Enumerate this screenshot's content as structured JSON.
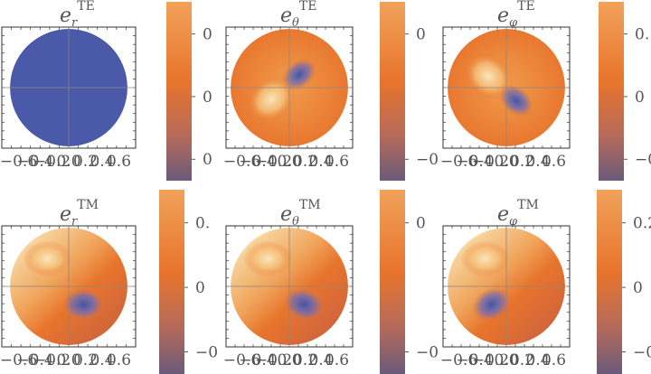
{
  "figure": {
    "panels": [
      {
        "id": "er-te",
        "title_main": "e",
        "title_sub": "r",
        "title_sup": "TE",
        "pattern": "uniform",
        "colorbar_labels": [
          "0",
          "0",
          "0"
        ]
      },
      {
        "id": "etheta-te",
        "title_main": "e",
        "title_sub": "θ",
        "title_sup": "TE",
        "pattern": "lobes-a",
        "colorbar_labels": [
          "0",
          "−0"
        ]
      },
      {
        "id": "ephi-te",
        "title_main": "e",
        "title_sub": "φ",
        "title_sup": "TE",
        "pattern": "lobes-b",
        "colorbar_labels": [
          "0.",
          "0",
          "−0"
        ]
      },
      {
        "id": "er-tm",
        "title_main": "e",
        "title_sub": "r",
        "title_sup": "TM",
        "pattern": "swirl-a",
        "colorbar_labels": [
          "0.",
          "0",
          "−0"
        ]
      },
      {
        "id": "etheta-tm",
        "title_main": "e",
        "title_sub": "θ",
        "title_sup": "TM",
        "pattern": "swirl-b",
        "colorbar_labels": [
          "0",
          "−0"
        ]
      },
      {
        "id": "ephi-tm",
        "title_main": "e",
        "title_sub": "φ",
        "title_sup": "TM",
        "pattern": "swirl-c",
        "colorbar_labels": [
          "0.2",
          "0",
          "−0"
        ]
      }
    ],
    "x_tick_labels": [
      "−0.6",
      "−0.4",
      "−0.2",
      "0.0",
      "0.2",
      "0.4",
      "0.6"
    ]
  },
  "chart_data": {
    "type": "heatmap",
    "xlim": [
      -0.7,
      0.7
    ],
    "ylim": [
      -0.7,
      0.7
    ],
    "colors": {
      "low": "#6b5a7a",
      "mid": "#e8742c",
      "high": "#f5c98a",
      "blue": "#4a5aa8"
    }
  }
}
